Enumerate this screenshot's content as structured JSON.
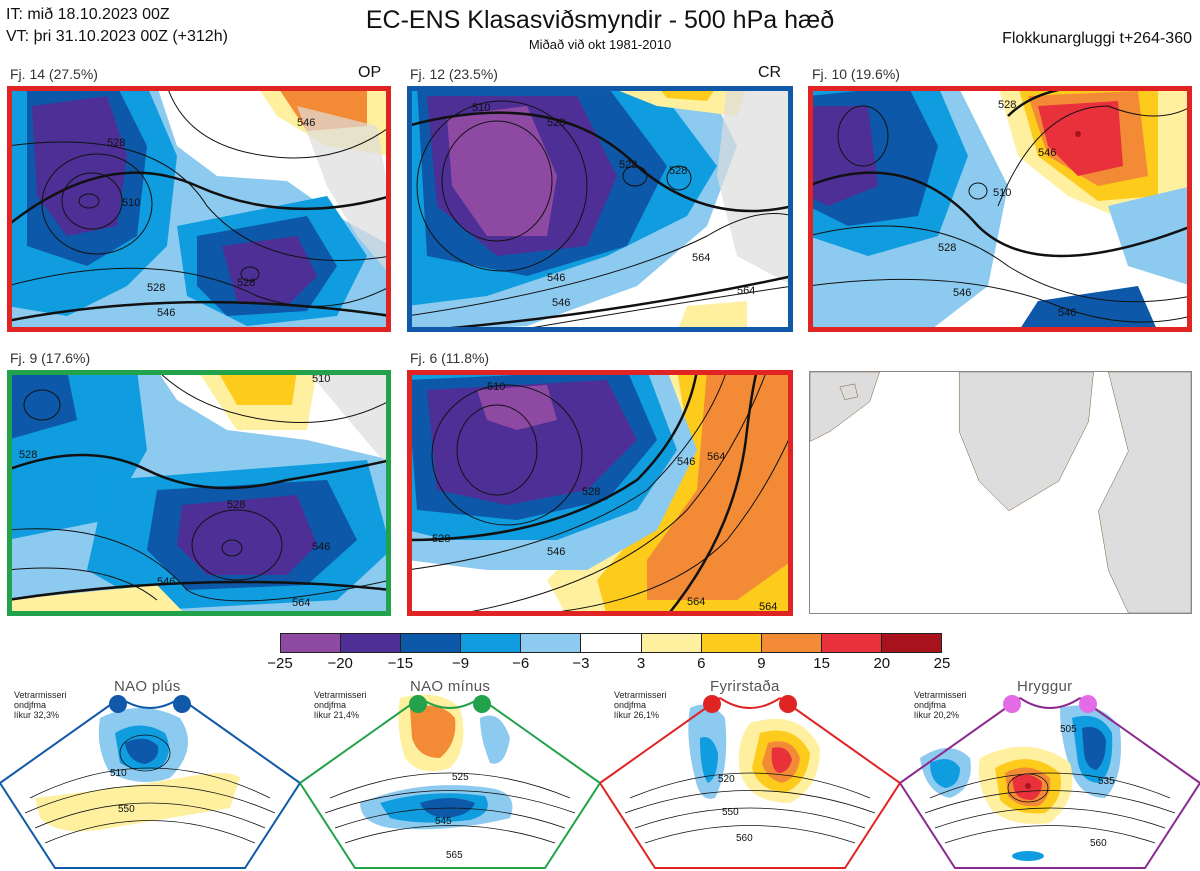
{
  "header": {
    "it_line": "IT: mið 18.10.2023 00Z",
    "vt_line": "VT: þri 31.10.2023 00Z  (+312h)",
    "title": "EC-ENS Klasasviðsmyndir - 500 hPa hæð",
    "subtitle": "Miðað við okt 1981-2010",
    "window": "Flokkunargluggi t+264-360"
  },
  "panels": [
    {
      "label": "Fj. 14 (27.5%)",
      "tag": "OP",
      "border": "#e02424",
      "contours": [
        "528",
        "510",
        "546",
        "528",
        "546",
        "528"
      ]
    },
    {
      "label": "Fj. 12 (23.5%)",
      "tag": "CR",
      "border": "#1059a8",
      "contours": [
        "510",
        "528",
        "528",
        "528",
        "546",
        "546",
        "564",
        "564"
      ]
    },
    {
      "label": "Fj. 10 (19.6%)",
      "tag": "",
      "border": "#e02424",
      "contours": [
        "528",
        "546",
        "510",
        "528",
        "546",
        "546"
      ]
    },
    {
      "label": "Fj. 9 (17.6%)",
      "tag": "",
      "border": "#22a24a",
      "contours": [
        "528",
        "528",
        "546",
        "546",
        "564",
        "510"
      ]
    },
    {
      "label": "Fj. 6 (11.8%)",
      "tag": "",
      "border": "#e02424",
      "contours": [
        "510",
        "546",
        "564",
        "528",
        "528",
        "546",
        "564",
        "564"
      ]
    }
  ],
  "colorbar": {
    "colors": [
      "#8e4aa3",
      "#4d2f96",
      "#0d58a8",
      "#0f9de0",
      "#8ccaef",
      "#ffffff",
      "#fff0a0",
      "#fccb1c",
      "#f38b36",
      "#e8313a",
      "#a8121c"
    ],
    "ticks": [
      "−25",
      "−20",
      "−15",
      "−9",
      "−6",
      "−3",
      "3",
      "6",
      "9",
      "15",
      "20",
      "25"
    ]
  },
  "regimes": [
    {
      "name": "NAO plús",
      "note": [
        "Vetrarmisseri",
        "ondjfma",
        "líkur 32,3%"
      ],
      "color": "#1059a8",
      "dot_color": "#1059a8",
      "labels": [
        "510",
        "550"
      ]
    },
    {
      "name": "NAO mínus",
      "note": [
        "Vetrarmisseri",
        "ondjfma",
        "líkur 21,4%"
      ],
      "color": "#22a24a",
      "dot_color": "#22a24a",
      "labels": [
        "525",
        "545",
        "565"
      ]
    },
    {
      "name": "Fyrirstaða",
      "note": [
        "Vetrarmisseri",
        "ondjfma",
        "líkur 26,1%"
      ],
      "color": "#e02424",
      "dot_color": "#e02424",
      "labels": [
        "520",
        "550",
        "560"
      ]
    },
    {
      "name": "Hryggur",
      "note": [
        "Vetrarmisseri",
        "ondjfma",
        "líkur 20,2%"
      ],
      "color": "#8a2a8e",
      "dot_color": "#e36be8",
      "labels": [
        "505",
        "535",
        "560"
      ]
    }
  ]
}
